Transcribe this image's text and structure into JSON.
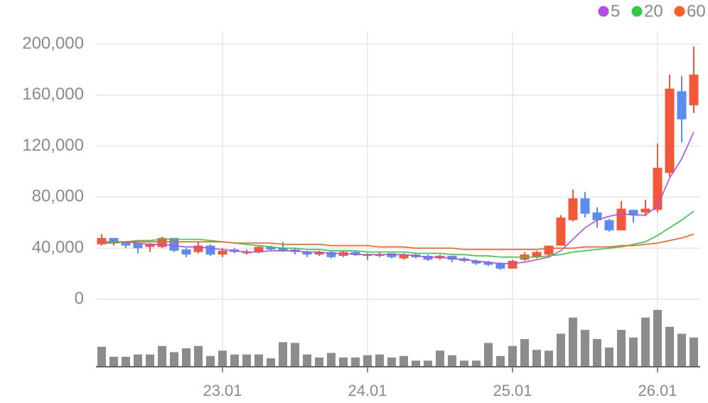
{
  "chart_data": {
    "type": "candlestick",
    "categories": [
      null,
      null,
      null,
      null,
      null,
      null,
      null,
      null,
      null,
      null,
      "23.01",
      null,
      null,
      null,
      null,
      null,
      null,
      null,
      null,
      null,
      null,
      null,
      "24.01",
      null,
      null,
      null,
      null,
      null,
      null,
      null,
      null,
      null,
      null,
      null,
      "25.01",
      null,
      null,
      null,
      null,
      null,
      null,
      null,
      null,
      null,
      null,
      null,
      "26.01",
      null,
      null,
      null
    ],
    "open": [
      43000,
      48000,
      45000,
      44000,
      41000,
      41000,
      48000,
      39000,
      37000,
      42000,
      35000,
      39000,
      36000,
      37000,
      41000,
      40000,
      39000,
      37000,
      35000,
      37000,
      34000,
      37000,
      34000,
      34000,
      36000,
      32000,
      35000,
      34000,
      32000,
      34000,
      32000,
      30000,
      29000,
      28000,
      24000,
      31000,
      33000,
      35000,
      42000,
      62000,
      79000,
      68000,
      62000,
      54000,
      70000,
      68000,
      70000,
      99000,
      163000,
      152000
    ],
    "high": [
      51000,
      48000,
      45000,
      44000,
      44000,
      49000,
      48000,
      40000,
      45000,
      43000,
      40000,
      40000,
      39000,
      42000,
      42000,
      45000,
      40000,
      38000,
      38000,
      38000,
      38000,
      38000,
      36000,
      37000,
      36000,
      36000,
      36000,
      35000,
      35000,
      34000,
      33000,
      31000,
      30000,
      29000,
      31000,
      37000,
      38000,
      42000,
      66000,
      86000,
      84000,
      72000,
      63000,
      77000,
      70000,
      78000,
      122000,
      176000,
      175000,
      198000
    ],
    "low": [
      42000,
      42000,
      40000,
      36000,
      37000,
      40000,
      37000,
      33000,
      36000,
      34000,
      33000,
      36000,
      35000,
      36000,
      38000,
      37000,
      35000,
      33000,
      34000,
      32000,
      33000,
      34000,
      31000,
      33000,
      32000,
      31000,
      32000,
      30000,
      31000,
      29000,
      29000,
      27000,
      26000,
      23000,
      24000,
      30000,
      32000,
      34000,
      42000,
      61000,
      64000,
      56000,
      53000,
      54000,
      60000,
      65000,
      68000,
      96000,
      123000,
      146000
    ],
    "close": [
      48000,
      44000,
      42000,
      40000,
      43000,
      48000,
      38000,
      35000,
      42000,
      35000,
      38000,
      37000,
      37000,
      41000,
      39000,
      38000,
      37000,
      35000,
      37000,
      33000,
      37000,
      35000,
      35000,
      35000,
      33000,
      35000,
      33000,
      31000,
      34000,
      31000,
      30000,
      28000,
      27000,
      24000,
      30000,
      35000,
      37000,
      42000,
      64000,
      79000,
      67000,
      62000,
      54000,
      71000,
      66000,
      71000,
      103000,
      165000,
      141000,
      176000
    ],
    "up_color": "#f2583a",
    "down_color": "#5b8def",
    "series": [
      {
        "name": "5",
        "color": "#b24ee6",
        "values": [
          45000,
          45000,
          45000,
          44000,
          43000,
          43000,
          42000,
          41000,
          41000,
          40000,
          39000,
          38000,
          37000,
          37000,
          38000,
          38000,
          38000,
          37000,
          37000,
          36000,
          36000,
          35000,
          35000,
          35000,
          35000,
          35000,
          34000,
          33000,
          33000,
          32000,
          31000,
          30000,
          29000,
          28000,
          28000,
          29000,
          31000,
          33000,
          38000,
          47000,
          56000,
          62000,
          65000,
          67000,
          66000,
          66000,
          73000,
          95000,
          110000,
          131000
        ]
      },
      {
        "name": "20",
        "color": "#2ecc40",
        "values": [
          44000,
          45000,
          45000,
          46000,
          46000,
          47000,
          47000,
          47000,
          47000,
          46000,
          45000,
          44000,
          43000,
          42000,
          41000,
          40000,
          40000,
          39000,
          39000,
          38000,
          38000,
          38000,
          37000,
          37000,
          37000,
          37000,
          36000,
          36000,
          36000,
          35000,
          35000,
          34000,
          34000,
          33000,
          33000,
          33000,
          33000,
          34000,
          35000,
          37000,
          38000,
          39000,
          40000,
          41000,
          43000,
          45000,
          50000,
          56000,
          62000,
          69000
        ]
      },
      {
        "name": "60",
        "color": "#fc5f22",
        "values": [
          44000,
          44000,
          45000,
          45000,
          45000,
          45000,
          45000,
          45000,
          45000,
          45000,
          45000,
          44000,
          44000,
          44000,
          44000,
          43000,
          43000,
          43000,
          43000,
          42000,
          42000,
          42000,
          42000,
          41000,
          41000,
          41000,
          40000,
          40000,
          40000,
          40000,
          39000,
          39000,
          39000,
          39000,
          39000,
          39000,
          39000,
          40000,
          40000,
          40000,
          41000,
          41000,
          41000,
          42000,
          42000,
          43000,
          44000,
          46000,
          48000,
          51000
        ]
      }
    ],
    "volume": [
      26,
      13,
      13,
      16,
      16,
      27,
      19,
      24,
      27,
      14,
      21,
      16,
      16,
      16,
      11,
      32,
      31,
      16,
      12,
      18,
      12,
      12,
      15,
      16,
      12,
      14,
      8,
      8,
      21,
      15,
      8,
      8,
      31,
      14,
      27,
      36,
      22,
      21,
      43,
      64,
      48,
      36,
      25,
      48,
      38,
      64,
      74,
      52,
      43,
      38
    ],
    "volume_color": "#8c8c8c",
    "ylim": [
      0,
      210000
    ],
    "yticks": [
      0,
      {
        "value": 40000,
        "label": "40,000"
      },
      {
        "value": 80000,
        "label": "80,000"
      },
      {
        "value": 120000,
        "label": "120,000"
      },
      {
        "value": 160000,
        "label": "160,000"
      },
      {
        "value": 200000,
        "label": "200,000"
      }
    ],
    "grid": true,
    "legend": "top-right"
  }
}
